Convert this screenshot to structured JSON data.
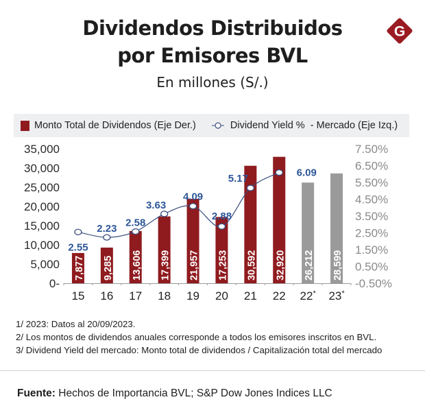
{
  "header": {
    "title_line1": "Dividendos Distribuidos",
    "title_line2": "por Emisores BVL",
    "subtitle": "En millones (S/.)",
    "logo_letter": "G"
  },
  "colors": {
    "bar": "#8f1b1f",
    "bar_estimate": "#9a9a9a",
    "line": "#3b4e7e",
    "yield_label": "#2d5697",
    "logo": "#9b1b22"
  },
  "chart_data": {
    "type": "bar",
    "title": "Dividendos Distribuidos por Emisores BVL",
    "subtitle": "En millones (S/.)",
    "categories": [
      "15",
      "16",
      "17",
      "18",
      "19",
      "20",
      "21",
      "22",
      "22*",
      "23*"
    ],
    "legend": {
      "placement": "top",
      "items": [
        "Monto Total de Dividendos (Eje Der.)",
        "Dividend Yield %  - Mercado (Eje Izq.)"
      ]
    },
    "series": [
      {
        "name": "Monto Total de Dividendos (Eje Der.)",
        "type": "bar",
        "axis": "left",
        "values": [
          7877,
          9285,
          13606,
          17399,
          21957,
          17253,
          30592,
          32920,
          26212,
          28599
        ],
        "labels": [
          "7,877",
          "9,285",
          "13,606",
          "17,399",
          "21,957",
          "17,253",
          "30,592",
          "32,920",
          "26,212",
          "28,599"
        ],
        "highlight": [
          false,
          false,
          false,
          false,
          false,
          false,
          false,
          false,
          true,
          true
        ]
      },
      {
        "name": "Dividend Yield %  - Mercado (Eje Izq.)",
        "type": "line",
        "axis": "right",
        "values": [
          2.55,
          2.23,
          2.58,
          3.63,
          4.09,
          2.88,
          5.17,
          6.09,
          null,
          null
        ],
        "labels": [
          "2.55",
          "2.23",
          "2.58",
          "3.63",
          "4.09",
          "2.88",
          "5.17",
          "6.09"
        ]
      }
    ],
    "y_left": {
      "range": [
        0,
        35000
      ],
      "ticks": [
        0,
        5000,
        10000,
        15000,
        20000,
        25000,
        30000,
        35000
      ],
      "tick_labels": [
        "0-",
        "5,000",
        "10,000",
        "15,000",
        "20,000",
        "25,000",
        "30,000",
        "35,000"
      ]
    },
    "y_right": {
      "range": [
        -0.5,
        7.5
      ],
      "ticks": [
        -0.5,
        0.5,
        1.5,
        2.5,
        3.5,
        4.5,
        5.5,
        6.5,
        7.5
      ],
      "tick_labels": [
        "-0.50%",
        "0.50%",
        "1.50%",
        "2.50%",
        "3.50%",
        "4.50%",
        "5.50%",
        "6.50%",
        "7.50%"
      ]
    },
    "xlabel": "",
    "ylabel": "",
    "grid": false
  },
  "notes": [
    "1/ 2023: Datos al 20/09/2023.",
    "2/ Los montos de dividendos anuales corresponde a todos los emisores inscritos en BVL.",
    "3/ Dividend Yield del mercado: Monto total de dividendos / Capitalización total del mercado"
  ],
  "source": {
    "label": "Fuente:",
    "text": " Hechos de Importancia BVL; S&P Dow Jones Indices LLC"
  }
}
